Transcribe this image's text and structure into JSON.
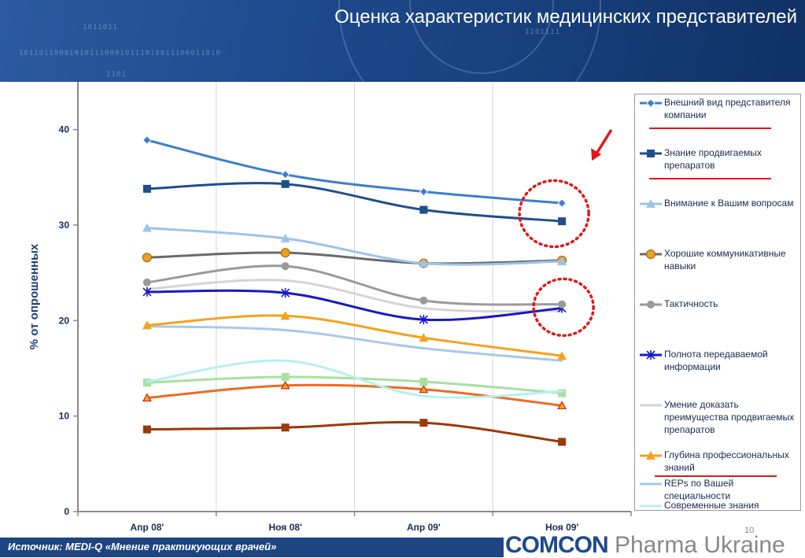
{
  "header": {
    "title": "Оценка характеристик медицинских представителей"
  },
  "footer": {
    "source": "Источник: MEDI-Q «Мнение практикующих врачей»",
    "page_number": "10"
  },
  "logo": {
    "part1": "COMCON",
    "part2": " Pharma Ukraine"
  },
  "colors": {
    "header_bg": "#1f4a8c",
    "highlight_red": "#e01818"
  },
  "chart_data": {
    "type": "line",
    "title": "",
    "xlabel": "",
    "ylabel": "% от опрошенных",
    "categories": [
      "Апр 08'",
      "Ноя 08'",
      "Апр 09'",
      "Ноя 09'"
    ],
    "ylim": [
      0,
      45
    ],
    "yticks": [
      0,
      10,
      20,
      30,
      40
    ],
    "grid": "vertical",
    "legend_position": "right",
    "series": [
      {
        "name": "Внешний вид представителя компании",
        "color": "#3b7fcf",
        "marker": "diamond",
        "values": [
          38.9,
          35.3,
          33.5,
          32.3
        ]
      },
      {
        "name": "Знание продвигаемых препаратов",
        "color": "#1f4e8c",
        "marker": "square",
        "values": [
          33.8,
          34.3,
          31.6,
          30.4
        ]
      },
      {
        "name": "Внимание к Вашим вопросам",
        "color": "#9ec3ea",
        "marker": "triangle",
        "values": [
          29.7,
          28.6,
          26.0,
          26.2
        ]
      },
      {
        "name": "Хорошие коммуникативные навыки",
        "color": "#6a6a6a",
        "marker": "circle-orange",
        "values": [
          26.6,
          27.1,
          26.0,
          26.3
        ]
      },
      {
        "name": "Тактичность",
        "color": "#9a9a9a",
        "marker": "circle",
        "values": [
          24.0,
          25.7,
          22.1,
          21.7
        ]
      },
      {
        "name": "Полнота передаваемой информации",
        "color": "#1818c8",
        "marker": "star",
        "values": [
          23.0,
          22.9,
          20.1,
          21.3
        ]
      },
      {
        "name": "Умение доказать преимущества продвигаемых препаратов",
        "color": "#d4d4d4",
        "marker": "none",
        "values": [
          23.3,
          24.2,
          21.3,
          21.0
        ]
      },
      {
        "name": "Глубина профессиональных знаний",
        "color": "#f4a21c",
        "marker": "triangle",
        "values": [
          19.5,
          20.5,
          18.2,
          16.3
        ]
      },
      {
        "name": "REPs по Вашей специальности",
        "color": "#a8c8e8",
        "marker": "none",
        "values": [
          19.4,
          19.0,
          17.1,
          15.8
        ]
      },
      {
        "name": "Современные знания",
        "color": "#b6f0f0",
        "marker": "none",
        "values": [
          13.6,
          15.8,
          12.1,
          12.6
        ]
      },
      {
        "name": "",
        "color": "#a8e0a0",
        "marker": "square",
        "values": [
          13.5,
          14.1,
          13.6,
          12.4
        ]
      },
      {
        "name": "",
        "color": "#ee6a22",
        "marker": "triangle-red",
        "values": [
          11.9,
          13.2,
          12.8,
          11.1
        ]
      },
      {
        "name": "",
        "color": "#9a3a0a",
        "marker": "square",
        "values": [
          8.6,
          8.8,
          9.3,
          7.3
        ]
      }
    ],
    "annotations": [
      {
        "type": "dotted-circle",
        "target": "Ноя 09'",
        "color": "#e01818"
      },
      {
        "type": "dotted-circle",
        "target": "Ноя 09'",
        "color": "#e01818"
      },
      {
        "type": "arrow",
        "color": "#e01818"
      }
    ]
  }
}
